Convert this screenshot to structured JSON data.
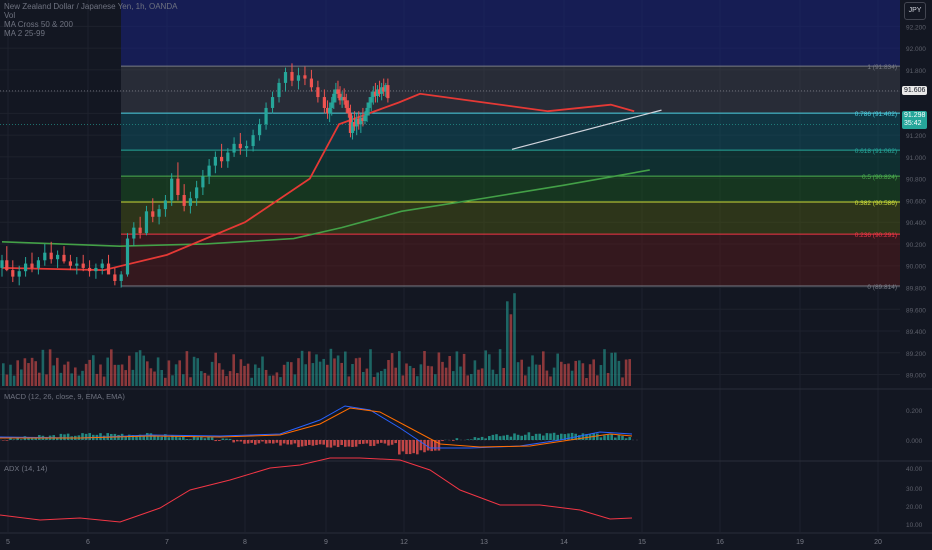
{
  "header": {
    "symbol_title": "New Zealand Dollar / Japanese Yen, 1h, OANDA",
    "vol_label": "Vol",
    "ma1_label": "MA Cross 50 & 200",
    "ma2_label": "MA 2 25-99",
    "currency_button": "JPY"
  },
  "price_tags": {
    "high_line": "91.606",
    "last": "91.298",
    "countdown": "35:42"
  },
  "colors": {
    "bg": "#131722",
    "grid": "#1e222d",
    "up": "#26a69a",
    "down": "#ef5350",
    "ma50": "#e53935",
    "ma200": "#43a047",
    "macd": "#2962ff",
    "signal": "#ff6d00",
    "adx": "#f23645"
  },
  "chart_data": [
    {
      "type": "candlestick",
      "pane": "price",
      "x_ticks": [
        "5",
        "6",
        "7",
        "8",
        "9",
        "12",
        "13",
        "14",
        "15",
        "16",
        "19",
        "20"
      ],
      "y_ticks": [
        "92.200",
        "92.000",
        "91.800",
        "91.600",
        "91.400",
        "91.200",
        "91.000",
        "90.800",
        "90.600",
        "90.400",
        "90.200",
        "90.000",
        "89.800",
        "89.600",
        "89.400",
        "89.200",
        "89.000"
      ],
      "ylim": [
        88.95,
        92.35
      ],
      "fib_levels": [
        {
          "ratio": "1",
          "price": 91.834,
          "label": "1 (91.834)",
          "color": "#787b86"
        },
        {
          "ratio": "0.786",
          "price": 91.402,
          "label": "0.786 (91.402)",
          "color": "#4dd0e1"
        },
        {
          "ratio": "0.618",
          "price": 91.062,
          "label": "0.618 (91.062)",
          "color": "#26a69a"
        },
        {
          "ratio": "0.5",
          "price": 90.824,
          "label": "0.5 (90.824)",
          "color": "#4caf50"
        },
        {
          "ratio": "0.382",
          "price": 90.586,
          "label": "0.382 (90.586)",
          "color": "#cddc39"
        },
        {
          "ratio": "0.236",
          "price": 90.291,
          "label": "0.236 (90.291)",
          "color": "#f23645"
        },
        {
          "ratio": "0",
          "price": 89.814,
          "label": "0 (89.814)",
          "color": "#787b86"
        }
      ],
      "high_line_price": 91.606,
      "last_price": 91.298,
      "trend_line": {
        "from": [
          13.35,
          91.07
        ],
        "to": [
          15.25,
          91.43
        ]
      },
      "ma200_points": [
        [
          4.9,
          90.22
        ],
        [
          6.4,
          90.18
        ],
        [
          7.5,
          90.2
        ],
        [
          8.6,
          90.25
        ],
        [
          9.6,
          90.35
        ],
        [
          11.9,
          90.5
        ],
        [
          13.0,
          90.62
        ],
        [
          14.0,
          90.74
        ],
        [
          15.1,
          90.88
        ]
      ],
      "ma50_points": [
        [
          4.9,
          89.98
        ],
        [
          6.2,
          89.96
        ],
        [
          7.0,
          90.1
        ],
        [
          8.0,
          90.4
        ],
        [
          8.8,
          90.8
        ],
        [
          9.5,
          91.3
        ],
        [
          11.8,
          91.5
        ],
        [
          12.2,
          91.58
        ],
        [
          13.0,
          91.5
        ],
        [
          13.8,
          91.42
        ],
        [
          14.6,
          91.48
        ],
        [
          14.9,
          91.42
        ]
      ],
      "ohlc": [
        [
          4.9,
          89.98,
          90.1,
          89.9,
          90.05
        ],
        [
          4.98,
          90.05,
          90.18,
          89.95,
          89.96
        ],
        [
          5.06,
          89.96,
          90.05,
          89.85,
          89.9
        ],
        [
          5.14,
          89.9,
          90.0,
          89.82,
          89.95
        ],
        [
          5.22,
          89.95,
          90.08,
          89.9,
          90.02
        ],
        [
          5.3,
          90.02,
          90.12,
          89.94,
          89.98
        ],
        [
          5.38,
          89.98,
          90.08,
          89.92,
          90.05
        ],
        [
          5.46,
          90.05,
          90.2,
          90.0,
          90.12
        ],
        [
          5.54,
          90.12,
          90.22,
          90.02,
          90.06
        ],
        [
          5.62,
          90.06,
          90.14,
          89.98,
          90.1
        ],
        [
          5.7,
          90.1,
          90.18,
          90.02,
          90.04
        ],
        [
          5.78,
          90.04,
          90.1,
          89.96,
          90.0
        ],
        [
          5.86,
          90.0,
          90.08,
          89.92,
          90.02
        ],
        [
          5.94,
          90.02,
          90.1,
          89.95,
          89.98
        ],
        [
          6.02,
          89.98,
          90.05,
          89.9,
          89.95
        ],
        [
          6.1,
          89.95,
          90.02,
          89.88,
          89.98
        ],
        [
          6.18,
          89.98,
          90.06,
          89.92,
          90.02
        ],
        [
          6.26,
          90.02,
          90.1,
          89.95,
          89.92
        ],
        [
          6.34,
          89.92,
          89.98,
          89.82,
          89.86
        ],
        [
          6.42,
          89.86,
          89.95,
          89.8,
          89.92
        ],
        [
          6.5,
          89.92,
          90.3,
          89.9,
          90.25
        ],
        [
          6.58,
          90.25,
          90.4,
          90.18,
          90.35
        ],
        [
          6.66,
          90.35,
          90.45,
          90.25,
          90.3
        ],
        [
          6.74,
          90.3,
          90.55,
          90.28,
          90.5
        ],
        [
          6.82,
          90.5,
          90.62,
          90.4,
          90.45
        ],
        [
          6.9,
          90.45,
          90.56,
          90.38,
          90.52
        ],
        [
          6.98,
          90.52,
          90.65,
          90.45,
          90.6
        ],
        [
          7.06,
          90.6,
          90.85,
          90.55,
          90.8
        ],
        [
          7.14,
          90.8,
          90.95,
          90.6,
          90.65
        ],
        [
          7.22,
          90.65,
          90.75,
          90.5,
          90.55
        ],
        [
          7.3,
          90.55,
          90.68,
          90.48,
          90.62
        ],
        [
          7.38,
          90.62,
          90.78,
          90.55,
          90.72
        ],
        [
          7.46,
          90.72,
          90.88,
          90.65,
          90.82
        ],
        [
          7.54,
          90.82,
          90.98,
          90.75,
          90.92
        ],
        [
          7.62,
          90.92,
          91.05,
          90.85,
          91.0
        ],
        [
          7.7,
          91.0,
          91.12,
          90.9,
          90.96
        ],
        [
          7.78,
          90.96,
          91.08,
          90.9,
          91.04
        ],
        [
          7.86,
          91.04,
          91.18,
          91.0,
          91.12
        ],
        [
          7.94,
          91.12,
          91.22,
          91.02,
          91.08
        ],
        [
          8.02,
          91.08,
          91.15,
          91.0,
          91.1
        ],
        [
          8.1,
          91.1,
          91.25,
          91.05,
          91.2
        ],
        [
          8.18,
          91.2,
          91.35,
          91.15,
          91.3
        ],
        [
          8.26,
          91.3,
          91.5,
          91.25,
          91.45
        ],
        [
          8.34,
          91.45,
          91.6,
          91.4,
          91.55
        ],
        [
          8.42,
          91.55,
          91.72,
          91.5,
          91.68
        ],
        [
          8.5,
          91.68,
          91.82,
          91.6,
          91.78
        ],
        [
          8.58,
          91.78,
          91.86,
          91.65,
          91.7
        ],
        [
          8.66,
          91.7,
          91.82,
          91.62,
          91.75
        ],
        [
          8.74,
          91.75,
          91.83,
          91.66,
          91.72
        ],
        [
          8.82,
          91.72,
          91.8,
          91.6,
          91.64
        ],
        [
          8.9,
          91.64,
          91.7,
          91.5,
          91.55
        ],
        [
          8.98,
          91.55,
          91.62,
          91.4,
          91.45
        ],
        [
          9.06,
          91.45,
          91.52,
          91.35,
          91.4
        ],
        [
          9.14,
          91.4,
          91.5,
          91.32,
          91.45
        ],
        [
          9.22,
          91.45,
          91.55,
          91.38,
          91.5
        ],
        [
          9.3,
          91.5,
          91.62,
          91.44,
          91.58
        ],
        [
          9.38,
          91.58,
          91.68,
          91.5,
          91.62
        ],
        [
          9.46,
          91.62,
          91.7,
          91.54,
          91.58
        ],
        [
          9.54,
          91.58,
          91.65,
          91.48,
          91.52
        ],
        [
          9.62,
          91.52,
          91.6,
          91.45,
          91.55
        ],
        [
          9.7,
          91.55,
          91.63,
          91.48,
          91.52
        ],
        [
          9.78,
          91.52,
          91.58,
          91.4,
          91.45
        ],
        [
          9.86,
          91.45,
          91.52,
          91.36,
          91.4
        ],
        [
          9.94,
          91.4,
          91.48,
          91.18,
          91.22
        ],
        [
          10.02,
          91.22,
          91.38,
          91.16,
          91.32
        ],
        [
          10.1,
          91.32,
          91.42,
          91.24,
          91.28
        ],
        [
          10.18,
          91.28,
          91.4,
          91.2,
          91.35
        ],
        [
          10.26,
          91.35,
          91.42,
          91.25,
          91.3
        ],
        [
          10.34,
          91.3,
          91.4,
          91.22,
          91.36
        ],
        [
          10.42,
          91.36,
          91.45,
          91.28,
          91.33
        ],
        [
          10.5,
          91.33,
          91.42,
          91.3,
          91.38
        ],
        [
          10.58,
          91.38,
          91.5,
          91.32,
          91.45
        ],
        [
          10.66,
          91.45,
          91.55,
          91.38,
          91.5
        ],
        [
          10.74,
          91.5,
          91.6,
          91.42,
          91.55
        ],
        [
          10.82,
          91.55,
          91.65,
          91.48,
          91.6
        ],
        [
          10.9,
          91.6,
          91.68,
          91.5,
          91.56
        ],
        [
          10.98,
          91.56,
          91.66,
          91.5,
          91.62
        ],
        [
          11.06,
          91.62,
          91.7,
          91.55,
          91.58
        ],
        [
          11.14,
          91.58,
          91.68,
          91.52,
          91.64
        ],
        [
          11.22,
          91.64,
          91.72,
          91.56,
          91.6
        ],
        [
          11.3,
          91.6,
          91.68,
          91.55,
          91.66
        ],
        [
          11.38,
          91.66,
          91.72,
          91.5,
          91.54
        ]
      ]
    },
    {
      "type": "bar",
      "pane": "volume",
      "label": "Vol"
    },
    {
      "type": "line",
      "pane": "macd",
      "label": "MACD (12, 26, close, 9, EMA, EMA)",
      "y_ticks": [
        "0.200",
        "0.000"
      ]
    },
    {
      "type": "line",
      "pane": "adx",
      "label": "ADX (14, 14)",
      "y_ticks": [
        "40.00",
        "30.00",
        "20.00",
        "10.00"
      ]
    }
  ]
}
